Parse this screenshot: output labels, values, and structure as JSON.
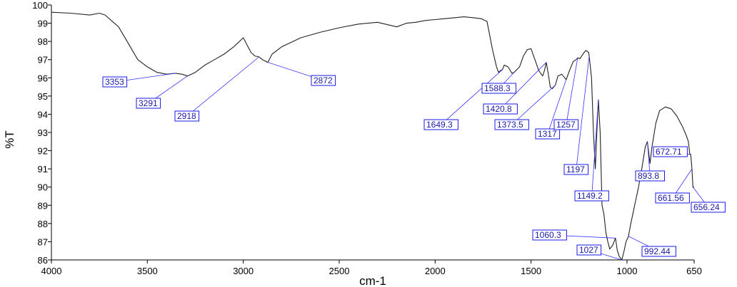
{
  "chart_data": {
    "type": "line",
    "title": "",
    "xlabel": "cm-1",
    "ylabel": "%T",
    "xlim": [
      4000,
      650
    ],
    "ylim": [
      86,
      100
    ],
    "x_reversed": true,
    "x_ticks": [
      4000,
      3500,
      3000,
      2500,
      2000,
      1500,
      1000,
      650
    ],
    "y_ticks": [
      86,
      87,
      88,
      89,
      90,
      91,
      92,
      93,
      94,
      95,
      96,
      97,
      98,
      99,
      100
    ],
    "y_tick_labels": [
      "86",
      "87",
      "88",
      "89",
      "90",
      "91",
      "92",
      "93",
      "94",
      "95",
      "96",
      "97",
      "98",
      "99",
      "100"
    ],
    "grid": false,
    "colors": {
      "line": "#222222",
      "leader": "#3333ff",
      "label_text": "#1a1aa6",
      "label_box": "#1a1aee"
    },
    "series": [
      {
        "x": [
          4000,
          3900,
          3800,
          3750,
          3720,
          3650,
          3600,
          3550,
          3500,
          3450,
          3400,
          3353,
          3320,
          3291,
          3250,
          3200,
          3150,
          3100,
          3050,
          3000,
          2980,
          2960,
          2940,
          2918,
          2900,
          2872,
          2850,
          2800,
          2700,
          2600,
          2500,
          2400,
          2300,
          2200,
          2150,
          2100,
          2050,
          2000,
          1950,
          1900,
          1850,
          1800,
          1760,
          1730,
          1700,
          1680,
          1670,
          1660,
          1649.3,
          1640,
          1620,
          1600,
          1588.3,
          1560,
          1540,
          1520,
          1500,
          1480,
          1460,
          1440,
          1430,
          1420.8,
          1410,
          1400,
          1390,
          1373.5,
          1360,
          1340,
          1317,
          1300,
          1280,
          1265,
          1257,
          1245,
          1230,
          1215,
          1200,
          1197,
          1185,
          1175,
          1165,
          1155,
          1149.2,
          1140,
          1130,
          1120,
          1110,
          1100,
          1090,
          1075,
          1060.3,
          1050,
          1040,
          1027,
          1015,
          1005,
          992.44,
          980,
          960,
          940,
          920,
          905,
          893.8,
          880,
          870,
          850,
          830,
          800,
          770,
          740,
          710,
          690,
          680,
          672.71,
          668,
          661.56,
          656.24,
          650
        ],
        "y": [
          99.6,
          99.55,
          99.45,
          99.55,
          99.45,
          98.8,
          97.9,
          97.0,
          96.6,
          96.3,
          96.2,
          96.25,
          96.2,
          96.1,
          96.3,
          96.7,
          97.0,
          97.3,
          97.7,
          98.2,
          97.8,
          97.4,
          97.2,
          97.15,
          97.0,
          96.85,
          97.3,
          97.7,
          98.2,
          98.5,
          98.75,
          98.95,
          99.05,
          98.8,
          99.0,
          99.05,
          99.15,
          99.2,
          99.25,
          99.3,
          99.35,
          99.3,
          99.25,
          99.1,
          97.5,
          96.6,
          96.3,
          96.4,
          96.45,
          96.7,
          96.6,
          96.25,
          96.3,
          96.6,
          97.2,
          97.55,
          97.6,
          97.0,
          96.4,
          96.1,
          96.4,
          96.85,
          96.2,
          95.5,
          95.4,
          95.6,
          96.1,
          96.2,
          95.9,
          96.4,
          96.9,
          97.0,
          97.1,
          97.05,
          97.3,
          97.5,
          97.4,
          97.2,
          96.0,
          93.0,
          91.0,
          93.5,
          94.8,
          93.0,
          89.0,
          88.5,
          87.5,
          87.0,
          86.6,
          86.8,
          87.2,
          86.5,
          86.2,
          86.0,
          86.5,
          87.0,
          87.3,
          88.0,
          89.0,
          90.0,
          91.2,
          92.2,
          92.5,
          91.3,
          92.2,
          93.5,
          94.2,
          94.4,
          94.3,
          93.9,
          93.3,
          92.8,
          92.5,
          91.8,
          91.8,
          91.0,
          90.0,
          90.0
        ]
      }
    ],
    "annotations": [
      {
        "label": "3353",
        "x": 3353
      },
      {
        "label": "3291",
        "x": 3291
      },
      {
        "label": "2918",
        "x": 2918
      },
      {
        "label": "2872",
        "x": 2872
      },
      {
        "label": "1649.3",
        "x": 1649.3
      },
      {
        "label": "1588.3",
        "x": 1588.3
      },
      {
        "label": "1420.8",
        "x": 1420.8
      },
      {
        "label": "1373.5",
        "x": 1373.5
      },
      {
        "label": "1317",
        "x": 1317
      },
      {
        "label": "1257",
        "x": 1257
      },
      {
        "label": "1197",
        "x": 1197
      },
      {
        "label": "1149.2",
        "x": 1149.2
      },
      {
        "label": "1060.3",
        "x": 1060.3
      },
      {
        "label": "1027",
        "x": 1027
      },
      {
        "label": "992.44",
        "x": 992.44
      },
      {
        "label": "893.8",
        "x": 893.8
      },
      {
        "label": "672.71",
        "x": 672.71
      },
      {
        "label": "661.56",
        "x": 661.56
      },
      {
        "label": "656.24",
        "x": 656.24
      }
    ]
  }
}
